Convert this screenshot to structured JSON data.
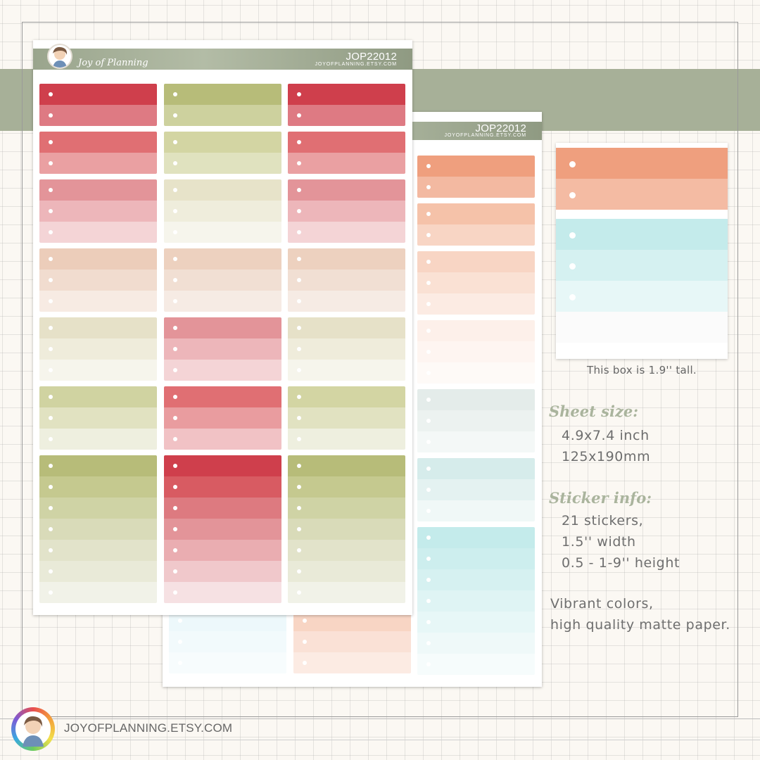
{
  "brand": {
    "logo_text": "Joy of Planning",
    "code": "JOP22012",
    "sheet_url": "JOYOFPLANNING.ETSY.COM",
    "footer_url": "JOYOFPLANNING.ETSY.COM",
    "band_color": "#a7b098"
  },
  "sample": {
    "caption": "This box is 1.9'' tall.",
    "strips": [
      "#ef9f7e",
      "#f4bba3",
      "#c4ebeb",
      "#d5f1f1",
      "#e7f7f7",
      "#fbfbfb"
    ]
  },
  "info": {
    "sheet_size_heading": "Sheet size:",
    "sheet_size_lines": [
      "4.9x7.4 inch",
      "125x190mm"
    ],
    "sticker_info_heading": "Sticker info:",
    "sticker_info_lines": [
      "21 stickers,",
      "1.5'' width",
      "0.5 - 1-9'' height"
    ],
    "vibrant_lines": [
      "Vibrant colors,",
      "high quality matte paper."
    ]
  },
  "front_sheet": {
    "columns": [
      [
        [
          "#cf3f4c",
          "#de7a83"
        ],
        [
          "#e06f73",
          "#eaa0a2"
        ],
        [
          "#e39499",
          "#edb6ba",
          "#f4d4d6"
        ],
        [
          "#eccdba",
          "#f1dccf",
          "#f7ebe3"
        ],
        [
          "#e6e1c8",
          "#efecdb",
          "#f6f5ec"
        ],
        [
          "#d0d3a1",
          "#e1e2c1",
          "#eeefdf"
        ],
        [
          "#b7bc79",
          "#c5c98f",
          "#cfd3a5",
          "#d9dbb9",
          "#e2e3ca",
          "#e9ead8",
          "#f1f2e8"
        ]
      ],
      [
        [
          "#b7bc79",
          "#cdd19e"
        ],
        [
          "#d3d5a3",
          "#e0e2bf"
        ],
        [
          "#e7e3c9",
          "#efeddc",
          "#f6f5ec"
        ],
        [
          "#edd1bf",
          "#f1dfd3",
          "#f6ebe4"
        ],
        [
          "#e39499",
          "#edb6ba",
          "#f4d4d6"
        ],
        [
          "#e06f73",
          "#e99c9f",
          "#f1c2c5"
        ],
        [
          "#cf3f4c",
          "#d85b62",
          "#dd7a80",
          "#e39499",
          "#eaadb1",
          "#f0c8cb",
          "#f6e1e3"
        ]
      ],
      [
        [
          "#cf3f4c",
          "#de7a83"
        ],
        [
          "#e06f73",
          "#eaa0a2"
        ],
        [
          "#e39499",
          "#edb6ba",
          "#f4d4d6"
        ],
        [
          "#edd1bf",
          "#f1dfd3",
          "#f6ebe4"
        ],
        [
          "#e6e1c8",
          "#efecdb",
          "#f6f5ec"
        ],
        [
          "#d3d5a3",
          "#e1e2c1",
          "#eeefdf"
        ],
        [
          "#b7bc79",
          "#c5c98f",
          "#cfd3a5",
          "#d9dbb9",
          "#e2e3ca",
          "#e9ead8",
          "#f1f2e8"
        ]
      ]
    ]
  },
  "back_sheet": {
    "right_column": [
      [
        "#ef9f7e",
        "#f3b9a1"
      ],
      [
        "#f5c2a9",
        "#f8d5c4"
      ],
      [
        "#f8d5c4",
        "#fae1d4",
        "#fcebe3"
      ],
      [
        "#fdf0ea",
        "#fef5f1",
        "#fefaf7"
      ],
      [
        "#e4ecea",
        "#ecf2f0",
        "#f4f8f7"
      ],
      [
        "#d6eceb",
        "#e4f2f1",
        "#f0f8f7"
      ],
      [
        "#c4ebeb",
        "#cdeeee",
        "#d6f1f1",
        "#dff4f4",
        "#e7f7f7",
        "#eff9f9",
        "#f6fcfc"
      ]
    ],
    "peek_left": [
      "#edf8fb",
      "#f2fafc",
      "#f7fcfd"
    ],
    "peek_mid": [
      "#f8d5c4",
      "#fae1d6",
      "#fcebe3"
    ]
  }
}
